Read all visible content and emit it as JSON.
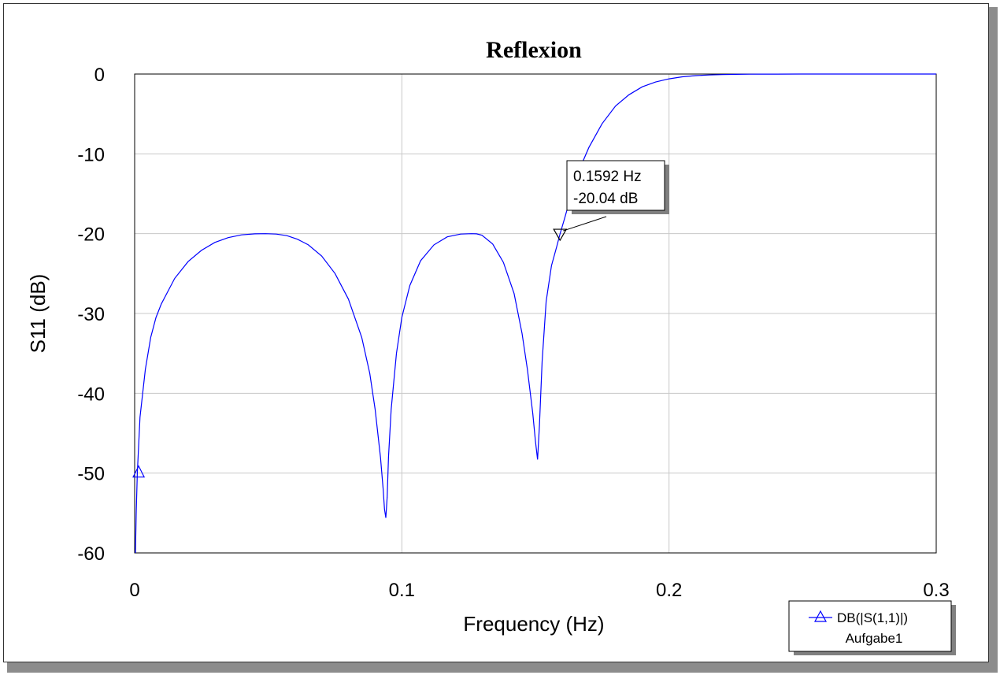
{
  "chart_data": {
    "type": "line",
    "title": "Reflexion",
    "xlabel": "Frequency (Hz)",
    "ylabel": "S11 (dB)",
    "xlim": [
      0,
      0.3
    ],
    "ylim": [
      -60,
      0
    ],
    "x_ticks": [
      0,
      0.1,
      0.2,
      0.3
    ],
    "x_tick_labels": [
      "0",
      "0.1",
      "0.2",
      "0.3"
    ],
    "y_ticks": [
      0,
      -10,
      -20,
      -30,
      -40,
      -50,
      -60
    ],
    "y_tick_labels": [
      "0",
      "-10",
      "-20",
      "-30",
      "-40",
      "-50",
      "-60"
    ],
    "grid": true,
    "series": [
      {
        "name": "DB(|S(1,1)|)",
        "color": "#0000ff",
        "marker": "triangle",
        "x": [
          0.0003,
          0.0006,
          0.001,
          0.002,
          0.004,
          0.006,
          0.008,
          0.01,
          0.015,
          0.02,
          0.025,
          0.03,
          0.035,
          0.04,
          0.045,
          0.049,
          0.053,
          0.057,
          0.061,
          0.065,
          0.07,
          0.075,
          0.08,
          0.085,
          0.088,
          0.09,
          0.092,
          0.093,
          0.0935,
          0.094,
          0.0945,
          0.095,
          0.096,
          0.098,
          0.1,
          0.103,
          0.107,
          0.112,
          0.117,
          0.122,
          0.126,
          0.128,
          0.13,
          0.134,
          0.138,
          0.142,
          0.145,
          0.147,
          0.149,
          0.15,
          0.1508,
          0.1515,
          0.1525,
          0.154,
          0.156,
          0.158,
          0.1592,
          0.161,
          0.163,
          0.166,
          0.17,
          0.175,
          0.18,
          0.185,
          0.19,
          0.195,
          0.2,
          0.205,
          0.21,
          0.215,
          0.22,
          0.225,
          0.23,
          0.235,
          0.24,
          0.25,
          0.26,
          0.27,
          0.28,
          0.29,
          0.3
        ],
        "y": [
          -60,
          -55,
          -50,
          -43,
          -37,
          -33,
          -30.5,
          -28.8,
          -25.6,
          -23.5,
          -22.1,
          -21.1,
          -20.5,
          -20.15,
          -20.02,
          -20,
          -20.05,
          -20.25,
          -20.7,
          -21.4,
          -22.8,
          -25,
          -28.2,
          -33,
          -37.5,
          -42,
          -48,
          -52,
          -54.5,
          -55.6,
          -53,
          -48,
          -42,
          -35,
          -30.5,
          -26.5,
          -23.4,
          -21.4,
          -20.4,
          -20.05,
          -20,
          -20.02,
          -20.2,
          -21.3,
          -23.6,
          -27.5,
          -32.5,
          -37,
          -42.5,
          -46,
          -48.3,
          -44,
          -36,
          -28.5,
          -24,
          -21.6,
          -20.04,
          -18,
          -15.6,
          -12.3,
          -9.2,
          -6.2,
          -4,
          -2.6,
          -1.6,
          -1,
          -0.6,
          -0.35,
          -0.2,
          -0.12,
          -0.07,
          -0.04,
          -0.02,
          -0.01,
          -0.005,
          0,
          0,
          0,
          0,
          0,
          0
        ]
      }
    ],
    "markers": [
      {
        "series": "DB(|S(1,1)|)",
        "x": 0.0015,
        "y": -50,
        "shape": "triangle-up"
      }
    ],
    "annotation": {
      "x": 0.1592,
      "y": -20.04,
      "line1": "0.1592 Hz",
      "line2": "-20.04 dB"
    },
    "legend": {
      "position": "bottom-right",
      "entry": "DB(|S(1,1)|)",
      "source": "Aufgabe1"
    }
  }
}
